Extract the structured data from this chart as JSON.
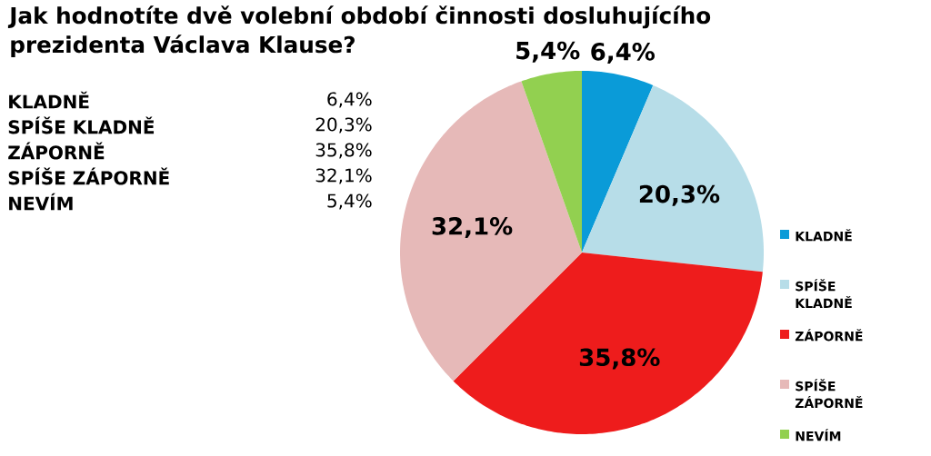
{
  "chart_data": {
    "type": "pie",
    "title": "Jak hodnotíte dvě volební období činnosti dosluhujícího prezidenta Václava Klause?",
    "categories": [
      "KLADNĚ",
      "SPÍŠE KLADNĚ",
      "ZÁPORNĚ",
      "SPÍŠE ZÁPORNĚ",
      "NEVÍM"
    ],
    "values": [
      6.4,
      20.3,
      35.8,
      32.1,
      5.4
    ],
    "value_labels": [
      "6,4%",
      "20,3%",
      "35,8%",
      "32,1%",
      "5,4%"
    ],
    "colors": [
      "#0a9bd8",
      "#b7dde8",
      "#ee1c1c",
      "#e6b9b8",
      "#92d050"
    ],
    "legend": "right"
  }
}
